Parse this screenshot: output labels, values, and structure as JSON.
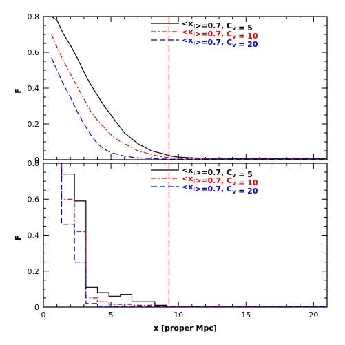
{
  "chart_data": [
    {
      "type": "line",
      "panel": "top",
      "ylabel": "F",
      "xlabel": "",
      "xlim": [
        0,
        21
      ],
      "ylim": [
        0,
        0.8
      ],
      "xticks": [
        0,
        5,
        10,
        15,
        20
      ],
      "yticks": [
        0,
        0.2,
        0.4,
        0.6,
        0.8
      ],
      "ytick_labels": [
        "0",
        "0.2",
        "0.4",
        "0.6",
        "0.8"
      ],
      "grid": false,
      "legend_position": "top-right",
      "vline": {
        "x": 9.3,
        "color": "#ee0000",
        "style": "dashed"
      },
      "series": [
        {
          "legend": {
            "a": "<x",
            "sub1": "i",
            "b": ">=0.7, C",
            "sub2": "v",
            "c": " = 5"
          },
          "color": "#000000",
          "style": "solid",
          "x": [
            0.6,
            1,
            1.5,
            2,
            2.5,
            3,
            3.5,
            4,
            4.5,
            5,
            5.5,
            6,
            6.5,
            7,
            7.5,
            8,
            8.5,
            9,
            9.5,
            10,
            11,
            12,
            13,
            14,
            15,
            16,
            17,
            18,
            19,
            20,
            21
          ],
          "y": [
            0.8,
            0.78,
            0.7,
            0.64,
            0.57,
            0.49,
            0.42,
            0.36,
            0.3,
            0.25,
            0.2,
            0.15,
            0.12,
            0.09,
            0.07,
            0.05,
            0.04,
            0.03,
            0.02,
            0.015,
            0.01,
            0.008,
            0.008,
            0.006,
            0.006,
            0.006,
            0.006,
            0.006,
            0.006,
            0.006,
            0.006
          ]
        },
        {
          "legend": {
            "a": "<x",
            "sub1": "i",
            "b": ">=0.7, C",
            "sub2": "v",
            "c": " = 10"
          },
          "color": "#ee0000",
          "style": "dashdot",
          "x": [
            0.6,
            1,
            1.5,
            2,
            2.5,
            3,
            3.5,
            4,
            4.5,
            5,
            5.5,
            6,
            6.5,
            7,
            7.5,
            8,
            8.5,
            9,
            9.5,
            10,
            11,
            12,
            13,
            14,
            15,
            16,
            17,
            18,
            19,
            20,
            21
          ],
          "y": [
            0.7,
            0.63,
            0.55,
            0.48,
            0.41,
            0.34,
            0.27,
            0.22,
            0.18,
            0.14,
            0.11,
            0.09,
            0.07,
            0.05,
            0.04,
            0.03,
            0.02,
            0.015,
            0.01,
            0.008,
            0.006,
            0.005,
            0.005,
            0.005,
            0.005,
            0.005,
            0.005,
            0.005,
            0.005,
            0.005,
            0.005
          ]
        },
        {
          "legend": {
            "a": "<x",
            "sub1": "i",
            "b": ">=0.7, C",
            "sub2": "v",
            "c": " = 20"
          },
          "color": "#0000ee",
          "style": "dashed",
          "x": [
            0.6,
            1,
            1.5,
            2,
            2.5,
            3,
            3.5,
            4,
            4.5,
            5,
            5.5,
            6,
            6.5,
            7,
            7.5,
            8,
            8.5,
            9,
            9.5,
            10,
            11,
            12,
            13,
            14,
            15,
            16,
            17,
            18,
            19,
            20,
            21
          ],
          "y": [
            0.57,
            0.5,
            0.42,
            0.35,
            0.27,
            0.2,
            0.14,
            0.09,
            0.06,
            0.04,
            0.03,
            0.02,
            0.015,
            0.01,
            0.008,
            0.006,
            0.005,
            0.004,
            0.003,
            0.003,
            0.003,
            0.003,
            0.003,
            0.003,
            0.003,
            0.003,
            0.003,
            0.003,
            0.003,
            0.003,
            0.003
          ]
        }
      ]
    },
    {
      "type": "bar",
      "panel": "bottom",
      "ylabel": "F",
      "xlabel": "x [proper Mpc]",
      "xlim": [
        0,
        21
      ],
      "ylim": [
        0,
        0.8
      ],
      "xticks": [
        0,
        5,
        10,
        15,
        20
      ],
      "xtick_labels": [
        "0",
        "5",
        "10",
        "15",
        "20"
      ],
      "yticks": [
        0,
        0.2,
        0.4,
        0.6,
        0.8
      ],
      "ytick_labels": [
        "0",
        "0.2",
        "0.4",
        "0.6",
        "0.8"
      ],
      "grid": false,
      "legend_position": "top-right",
      "vline": {
        "x": 9.3,
        "color": "#ee0000",
        "style": "dashed"
      },
      "bin_edges": [
        1.35,
        2.3,
        3.15,
        4,
        4.85,
        5.7,
        6.55,
        7.4,
        8.25,
        9.1,
        21
      ],
      "series": [
        {
          "legend": {
            "a": "<x",
            "sub1": "i",
            "b": ">=0.7, C",
            "sub2": "v",
            "c": " = 5"
          },
          "color": "#000000",
          "style": "solid",
          "values": [
            0.74,
            0.59,
            0.11,
            0.08,
            0.06,
            0.07,
            0.03,
            0.03,
            0.01,
            0.005
          ]
        },
        {
          "legend": {
            "a": "<x",
            "sub1": "i",
            "b": ">=0.7, C",
            "sub2": "v",
            "c": " = 10"
          },
          "color": "#ee0000",
          "style": "dashdot",
          "values": [
            0.6,
            0.42,
            0.05,
            0.03,
            0.015,
            0.015,
            0.01,
            0.01,
            0.005,
            0.003
          ]
        },
        {
          "legend": {
            "a": "<x",
            "sub1": "i",
            "b": ">=0.7, C",
            "sub2": "v",
            "c": " = 20"
          },
          "color": "#0000ee",
          "style": "dashed",
          "values": [
            0.46,
            0.25,
            0.02,
            0.005,
            0.003,
            0.002,
            0.002,
            0.002,
            0.002,
            0.002
          ]
        }
      ]
    }
  ]
}
